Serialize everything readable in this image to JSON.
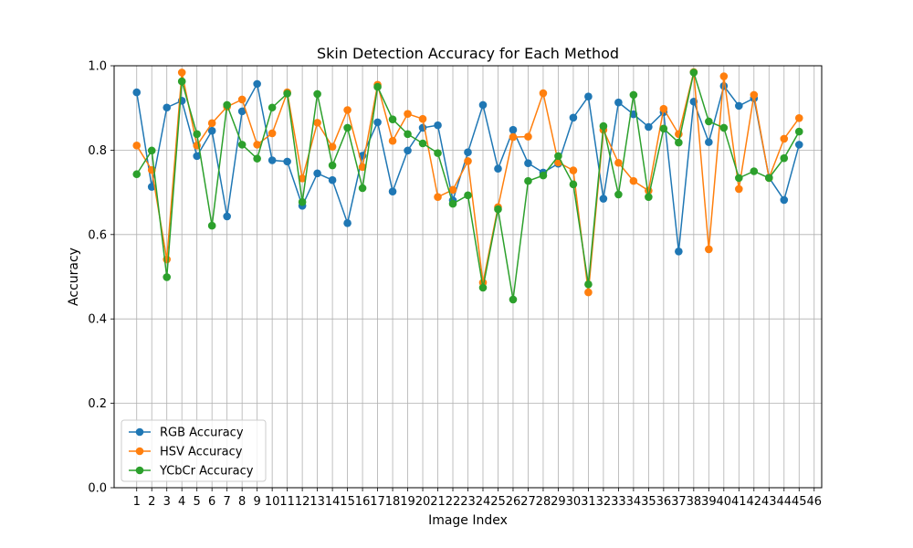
{
  "chart_data": {
    "type": "line",
    "title": "Skin Detection Accuracy for Each Method",
    "xlabel": "Image Index",
    "ylabel": "Accuracy",
    "ylim": [
      0.0,
      1.0
    ],
    "xlim": [
      -0.5,
      46.5
    ],
    "yticks": [
      "0.0",
      "0.2",
      "0.4",
      "0.6",
      "0.8",
      "1.0"
    ],
    "xticks": [
      "1",
      "2",
      "3",
      "4",
      "5",
      "6",
      "7",
      "8",
      "9",
      "10",
      "11",
      "12",
      "13",
      "14",
      "15",
      "16",
      "17",
      "18",
      "19",
      "20",
      "21",
      "22",
      "23",
      "24",
      "25",
      "26",
      "27",
      "28",
      "29",
      "30",
      "31",
      "32",
      "33",
      "34",
      "35",
      "36",
      "37",
      "38",
      "39",
      "40",
      "41",
      "42",
      "43",
      "44",
      "45",
      "46"
    ],
    "grid": true,
    "legend_position": "lower-left",
    "series": [
      {
        "name": "RGB Accuracy",
        "color": "#1f77b4",
        "values": [
          0.937,
          0.713,
          0.901,
          0.917,
          0.786,
          0.846,
          0.643,
          0.892,
          0.957,
          0.776,
          0.773,
          0.668,
          0.745,
          0.729,
          0.627,
          0.787,
          0.866,
          0.702,
          0.799,
          0.853,
          0.859,
          0.681,
          0.795,
          0.907,
          0.756,
          0.848,
          0.769,
          0.747,
          0.768,
          0.877,
          0.927,
          0.685,
          0.913,
          0.885,
          0.855,
          0.89,
          0.56,
          0.915,
          0.819,
          0.952,
          0.905,
          0.923,
          0.735,
          0.682,
          0.813
        ]
      },
      {
        "name": "HSV Accuracy",
        "color": "#ff7f0e",
        "values": [
          0.811,
          0.753,
          0.541,
          0.984,
          0.811,
          0.864,
          0.903,
          0.92,
          0.813,
          0.84,
          0.937,
          0.733,
          0.865,
          0.808,
          0.895,
          0.76,
          0.955,
          0.822,
          0.886,
          0.874,
          0.689,
          0.706,
          0.774,
          0.486,
          0.665,
          0.831,
          0.832,
          0.935,
          0.771,
          0.752,
          0.463,
          0.848,
          0.77,
          0.727,
          0.704,
          0.898,
          0.838,
          0.985,
          0.565,
          0.975,
          0.708,
          0.931,
          0.734,
          0.827,
          0.876
        ]
      },
      {
        "name": "YCbCr Accuracy",
        "color": "#2ca02c",
        "values": [
          0.743,
          0.799,
          0.499,
          0.963,
          0.838,
          0.621,
          0.907,
          0.813,
          0.78,
          0.901,
          0.934,
          0.677,
          0.933,
          0.764,
          0.853,
          0.71,
          0.95,
          0.873,
          0.838,
          0.816,
          0.793,
          0.673,
          0.693,
          0.474,
          0.66,
          0.446,
          0.727,
          0.74,
          0.786,
          0.719,
          0.482,
          0.857,
          0.695,
          0.931,
          0.689,
          0.851,
          0.818,
          0.984,
          0.868,
          0.853,
          0.734,
          0.75,
          0.734,
          0.781,
          0.844
        ]
      }
    ]
  }
}
